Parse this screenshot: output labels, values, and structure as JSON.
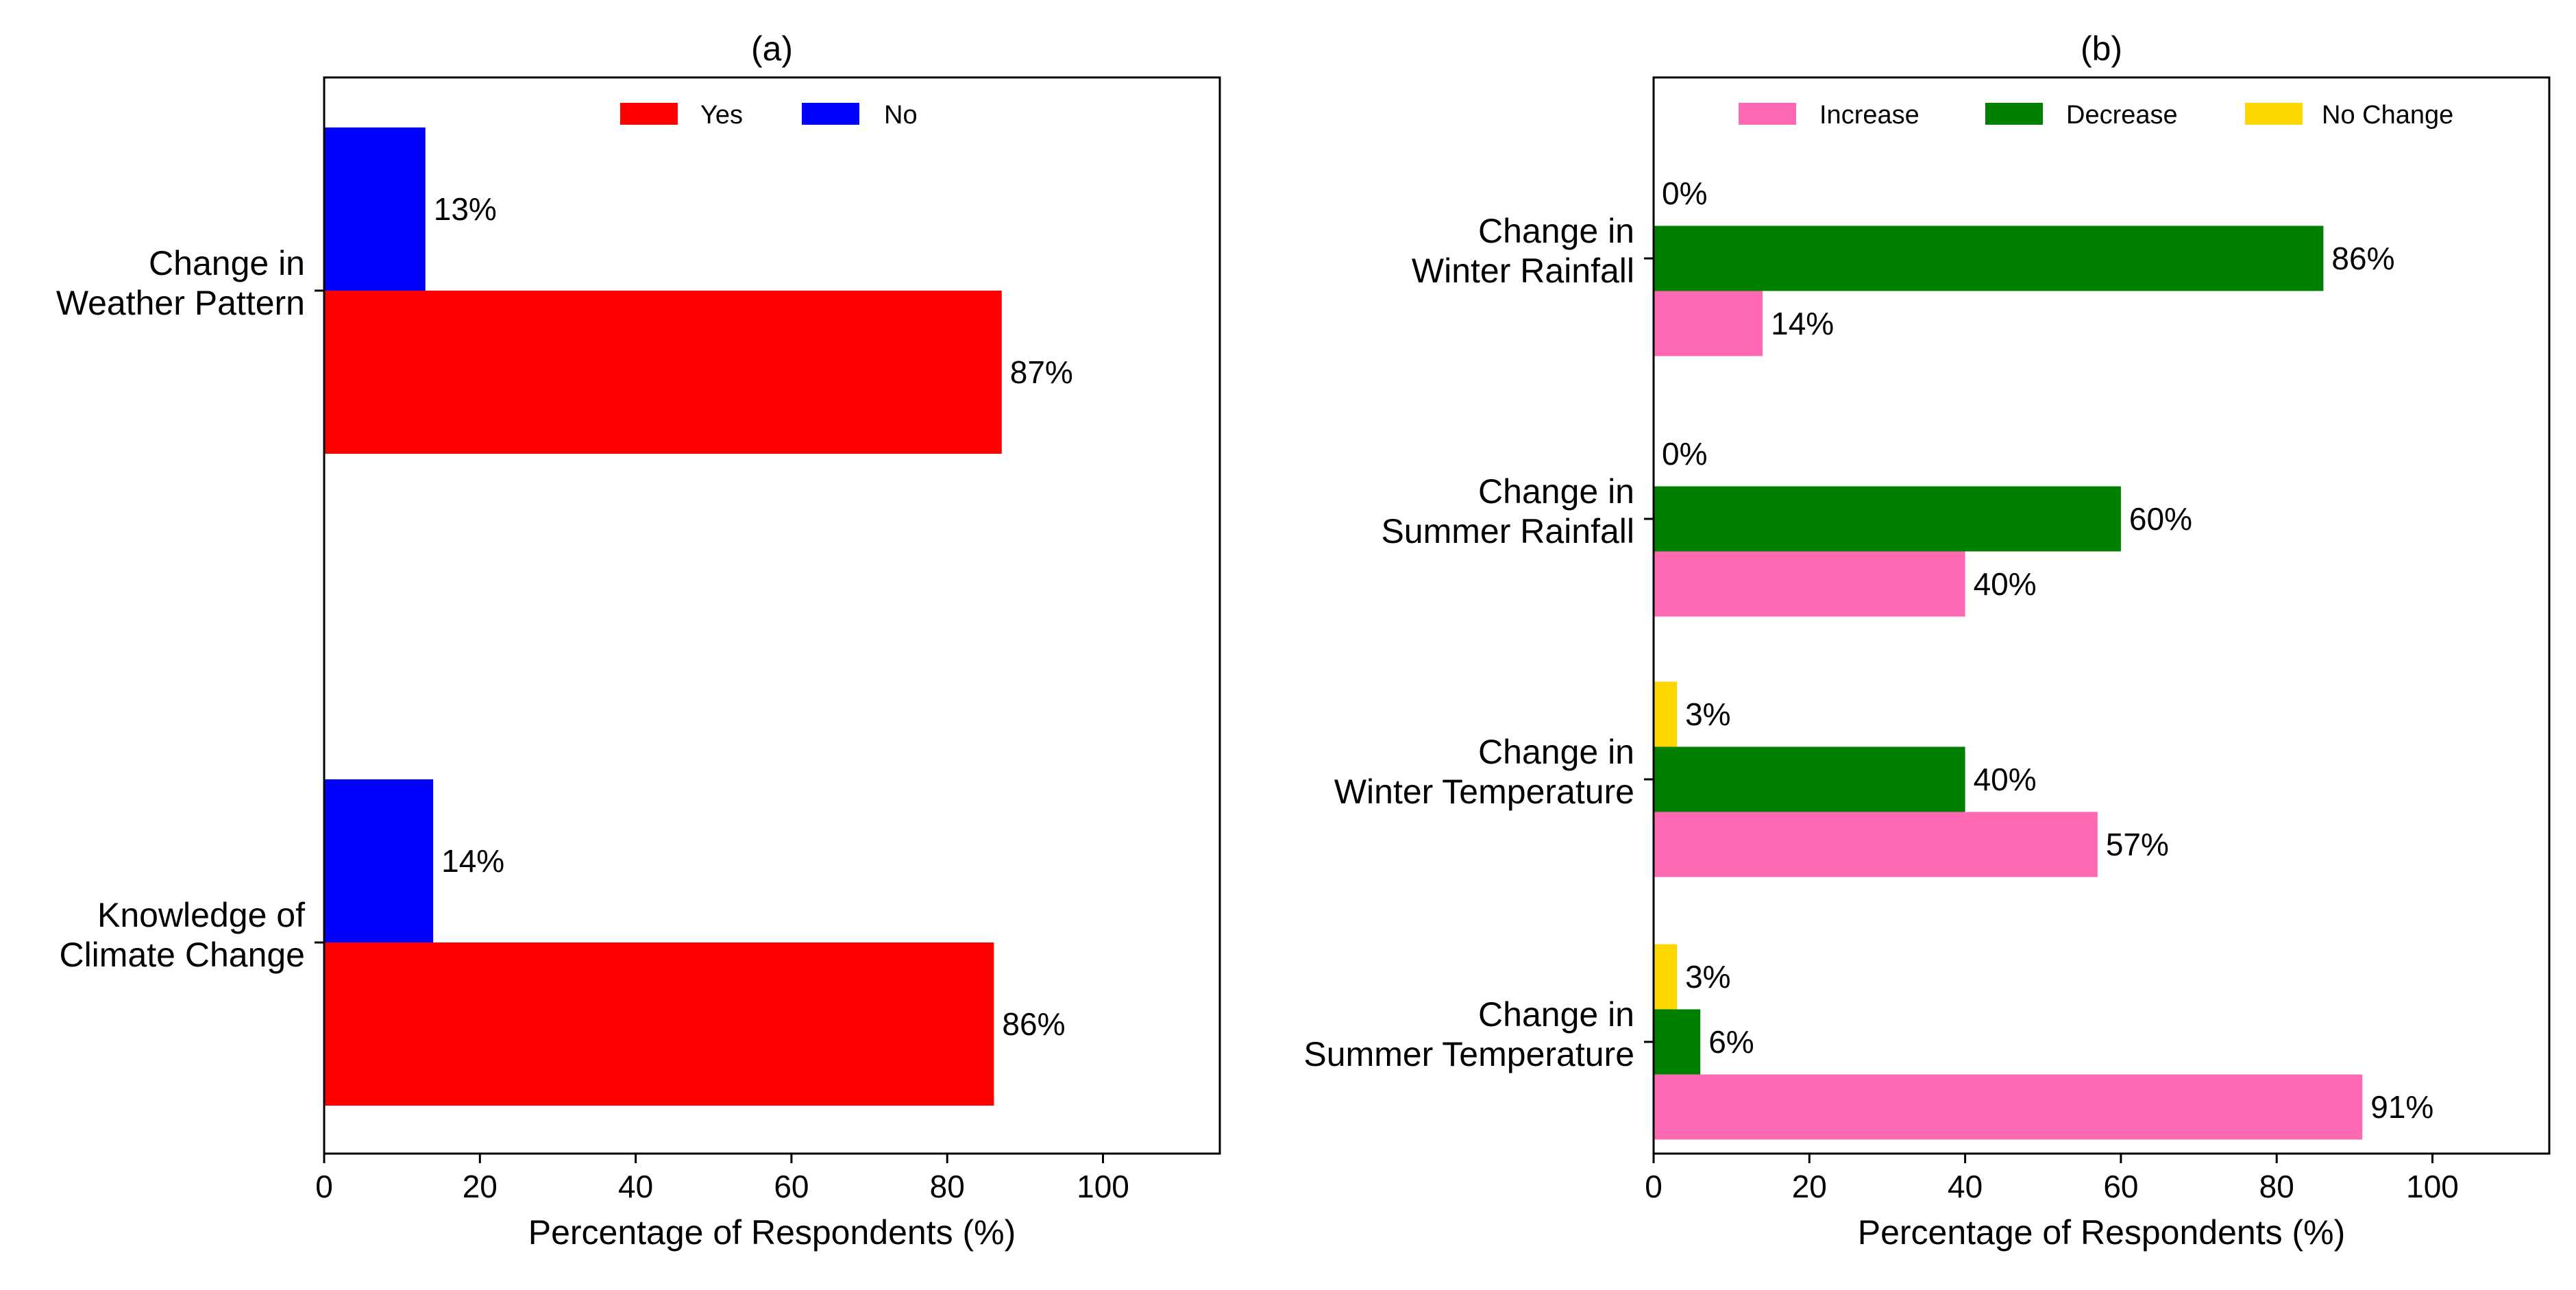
{
  "chart_data": [
    {
      "type": "bar",
      "orientation": "horizontal",
      "title": "(a)",
      "xlabel": "Percentage of Respondents (%)",
      "ylabel": "",
      "xlim": [
        0,
        115
      ],
      "xticks": [
        "0",
        "20",
        "40",
        "60",
        "80",
        "100"
      ],
      "categories": [
        [
          "Knowledge of",
          "Climate Change"
        ],
        [
          "Change in",
          "Weather Pattern"
        ]
      ],
      "series": [
        {
          "name": "Yes",
          "color": "#ff0000",
          "values": [
            86,
            87
          ],
          "labels": [
            "86%",
            "87%"
          ]
        },
        {
          "name": "No",
          "color": "#0000ff",
          "values": [
            14,
            13
          ],
          "labels": [
            "14%",
            "13%"
          ]
        }
      ],
      "legend": "top-center",
      "grid": false
    },
    {
      "type": "bar",
      "orientation": "horizontal",
      "title": "(b)",
      "xlabel": "Percentage of Respondents (%)",
      "ylabel": "",
      "xlim": [
        0,
        115
      ],
      "xticks": [
        "0",
        "20",
        "40",
        "60",
        "80",
        "100"
      ],
      "categories": [
        [
          "Change in",
          "Summer Temperature"
        ],
        [
          "Change in",
          "Winter Temperature"
        ],
        [
          "Change in",
          "Summer Rainfall"
        ],
        [
          "Change in",
          "Winter Rainfall"
        ]
      ],
      "series": [
        {
          "name": "Increase",
          "color": "#ff69b4",
          "values": [
            91,
            57,
            40,
            14
          ],
          "labels": [
            "91%",
            "57%",
            "40%",
            "14%"
          ]
        },
        {
          "name": "Decrease",
          "color": "#008000",
          "values": [
            6,
            40,
            60,
            86
          ],
          "labels": [
            "6%",
            "40%",
            "60%",
            "86%"
          ]
        },
        {
          "name": "No Change",
          "color": "#ffd700",
          "values": [
            3,
            3,
            0,
            0
          ],
          "labels": [
            "3%",
            "3%",
            "0%",
            "0%"
          ]
        }
      ],
      "legend": "top-center",
      "grid": false
    }
  ]
}
